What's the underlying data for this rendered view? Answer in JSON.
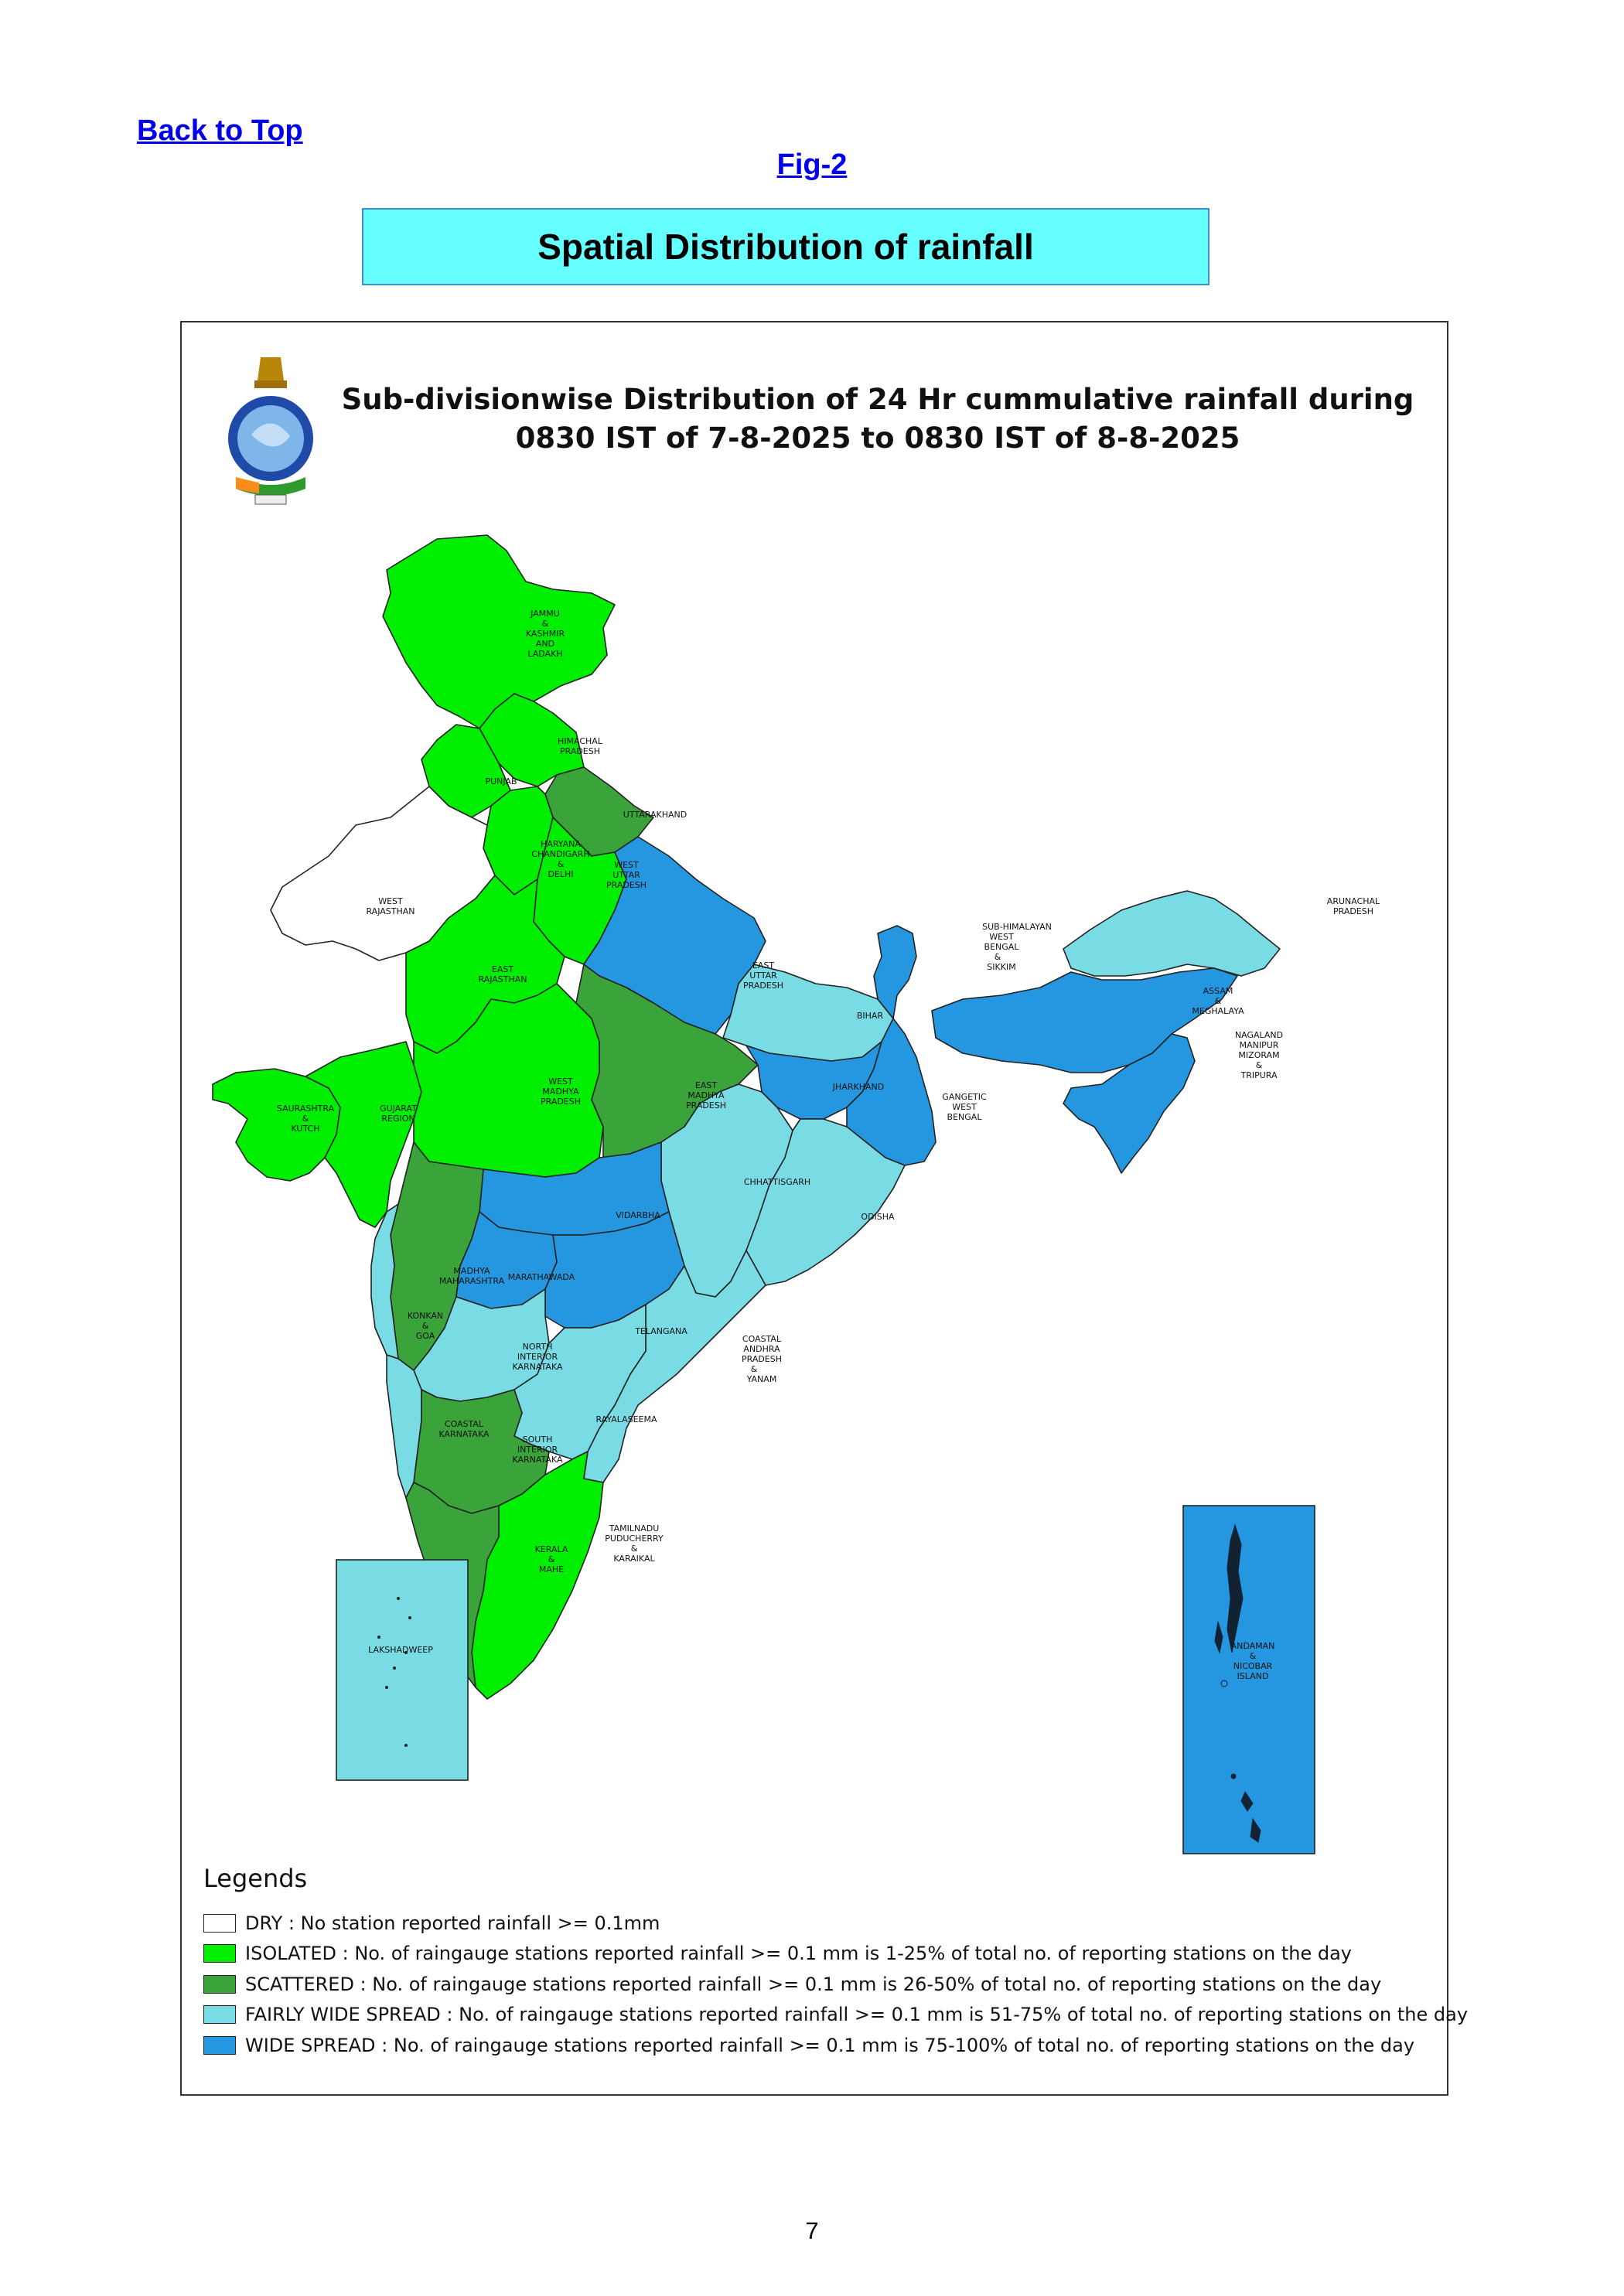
{
  "header": {
    "back_link": "Back to Top",
    "fig_link": "Fig-2",
    "section_title": "Spatial Distribution of rainfall"
  },
  "map": {
    "title_line1": "Sub-divisionwise Distribution of 24 Hr cummulative rainfall during",
    "title_line2": "0830 IST of 7-8-2025 to 0830 IST of 8-8-2025",
    "colors": {
      "dry": "#ffffff",
      "isolated": "#00ee00",
      "scattered": "#3aa33a",
      "fairly_wide_spread": "#79dbe3",
      "wide_spread": "#2497e0"
    },
    "subdivisions": [
      {
        "id": "jk",
        "label": "JAMMU & KASHMIR AND LADAKH",
        "category": "isolated"
      },
      {
        "id": "hp",
        "label": "HIMACHAL PRADESH",
        "category": "isolated"
      },
      {
        "id": "pb",
        "label": "PUNJAB",
        "category": "isolated"
      },
      {
        "id": "uk",
        "label": "UTTARAKHAND",
        "category": "scattered"
      },
      {
        "id": "hr",
        "label": "HARYANA CHANDIGARH & DELHI",
        "category": "isolated"
      },
      {
        "id": "wup",
        "label": "WEST UTTAR PRADESH",
        "category": "isolated"
      },
      {
        "id": "eup",
        "label": "EAST UTTAR PRADESH",
        "category": "wide_spread"
      },
      {
        "id": "wr",
        "label": "WEST RAJASTHAN",
        "category": "dry"
      },
      {
        "id": "er",
        "label": "EAST RAJASTHAN",
        "category": "isolated"
      },
      {
        "id": "wmp",
        "label": "WEST MADHYA PRADESH",
        "category": "isolated"
      },
      {
        "id": "emp",
        "label": "EAST MADHYA PRADESH",
        "category": "scattered"
      },
      {
        "id": "bh",
        "label": "BIHAR",
        "category": "fairly_wide_spread"
      },
      {
        "id": "jh",
        "label": "JHARKHAND",
        "category": "wide_spread"
      },
      {
        "id": "gwb",
        "label": "GANGETIC WEST BENGAL",
        "category": "wide_spread"
      },
      {
        "id": "shwb",
        "label": "SUB-HIMALAYAN WEST BENGAL & SIKKIM",
        "category": "wide_spread"
      },
      {
        "id": "ar",
        "label": "ARUNACHAL PRADESH",
        "category": "fairly_wide_spread"
      },
      {
        "id": "am",
        "label": "ASSAM & MEGHALAYA",
        "category": "wide_spread"
      },
      {
        "id": "nmmt",
        "label": "NAGALAND MANIPUR MIZORAM TRIPURA",
        "category": "wide_spread"
      },
      {
        "id": "sk",
        "label": "SAURASHTRA & KUTCH",
        "category": "isolated"
      },
      {
        "id": "gr",
        "label": "GUJARAT REGION",
        "category": "isolated"
      },
      {
        "id": "ch",
        "label": "CHHATTISGARH",
        "category": "fairly_wide_spread"
      },
      {
        "id": "od",
        "label": "ODISHA",
        "category": "fairly_wide_spread"
      },
      {
        "id": "vd",
        "label": "VIDARBHA",
        "category": "wide_spread"
      },
      {
        "id": "mm",
        "label": "MADHYA MAHARASHTRA",
        "category": "scattered"
      },
      {
        "id": "mw",
        "label": "MARATHAWADA",
        "category": "wide_spread"
      },
      {
        "id": "kg",
        "label": "KONKAN & GOA",
        "category": "fairly_wide_spread"
      },
      {
        "id": "tl",
        "label": "TELANGANA",
        "category": "wide_spread"
      },
      {
        "id": "nik",
        "label": "NORTH INTERIOR KARNATAKA",
        "category": "fairly_wide_spread"
      },
      {
        "id": "ca",
        "label": "COASTAL ANDHRA PRADESH & YANAM",
        "category": "fairly_wide_spread"
      },
      {
        "id": "rs",
        "label": "RAYALASEEMA",
        "category": "fairly_wide_spread"
      },
      {
        "id": "ck",
        "label": "COASTAL KARNATAKA",
        "category": "fairly_wide_spread"
      },
      {
        "id": "sik",
        "label": "SOUTH INTERIOR KARNATAKA",
        "category": "scattered"
      },
      {
        "id": "tn",
        "label": "TAMILNADU PUDUCHERRY & KARAIKAL",
        "category": "isolated"
      },
      {
        "id": "km",
        "label": "KERALA & MAHE",
        "category": "scattered"
      },
      {
        "id": "ld",
        "label": "LAKSHADWEEP",
        "category": "fairly_wide_spread"
      },
      {
        "id": "an",
        "label": "ANDAMAN & NICOBAR ISLAND",
        "category": "wide_spread"
      }
    ]
  },
  "legend": {
    "title": "Legends",
    "items": [
      {
        "key": "dry",
        "text": "DRY : No station reported rainfall >= 0.1mm"
      },
      {
        "key": "isolated",
        "text": "ISOLATED : No. of raingauge stations reported rainfall >= 0.1 mm is 1-25% of total no. of reporting stations on the day"
      },
      {
        "key": "scattered",
        "text": "SCATTERED : No. of raingauge stations reported rainfall >= 0.1 mm is 26-50% of total no. of reporting stations on the day"
      },
      {
        "key": "fairly_wide_spread",
        "text": "FAIRLY WIDE SPREAD : No. of raingauge stations reported rainfall >= 0.1 mm is 51-75% of total no. of reporting stations on the day"
      },
      {
        "key": "wide_spread",
        "text": "WIDE SPREAD : No. of raingauge stations reported rainfall >= 0.1 mm is 75-100% of total no. of reporting stations on the day"
      }
    ]
  },
  "footer": {
    "page_number": "7"
  }
}
